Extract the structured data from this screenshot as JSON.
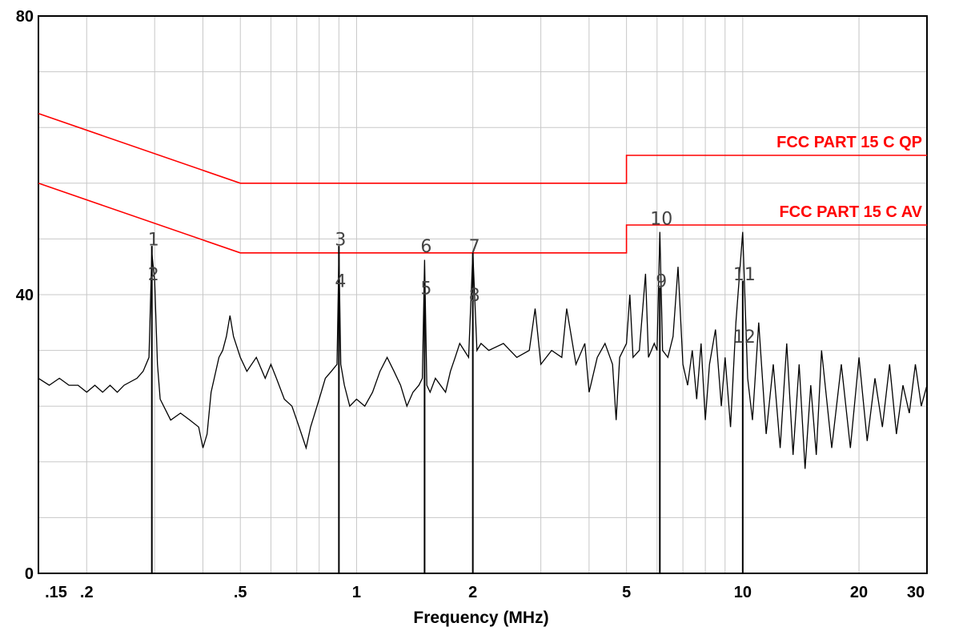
{
  "chart_data": {
    "type": "line",
    "xlabel": "Frequency (MHz)",
    "ylabel": "",
    "x_scale": "log",
    "xlim": [
      0.15,
      30
    ],
    "ylim": [
      0,
      80
    ],
    "grid": true,
    "x_ticks": [
      {
        "value": 0.15,
        "label": ".15"
      },
      {
        "value": 0.2,
        "label": ".2"
      },
      {
        "value": 0.5,
        "label": ".5"
      },
      {
        "value": 1,
        "label": "1"
      },
      {
        "value": 2,
        "label": "2"
      },
      {
        "value": 5,
        "label": "5"
      },
      {
        "value": 10,
        "label": "10"
      },
      {
        "value": 20,
        "label": "20"
      },
      {
        "value": 30,
        "label": "30"
      }
    ],
    "y_ticks": [
      {
        "value": 0,
        "label": "0"
      },
      {
        "value": 40,
        "label": "40"
      },
      {
        "value": 80,
        "label": "80"
      }
    ],
    "limit_lines": [
      {
        "name": "FCC PART 15 C QP",
        "color": "#ff0000",
        "points": [
          [
            0.15,
            66
          ],
          [
            0.5,
            56
          ],
          [
            5,
            56
          ],
          [
            5,
            60
          ],
          [
            30,
            60
          ]
        ]
      },
      {
        "name": "FCC PART 15 C AV",
        "color": "#ff0000",
        "points": [
          [
            0.15,
            56
          ],
          [
            0.5,
            46
          ],
          [
            5,
            46
          ],
          [
            5,
            50
          ],
          [
            30,
            50
          ]
        ]
      }
    ],
    "spectrum": [
      [
        0.15,
        28
      ],
      [
        0.16,
        27
      ],
      [
        0.17,
        28
      ],
      [
        0.18,
        27
      ],
      [
        0.19,
        27
      ],
      [
        0.2,
        26
      ],
      [
        0.21,
        27
      ],
      [
        0.22,
        26
      ],
      [
        0.23,
        27
      ],
      [
        0.24,
        26
      ],
      [
        0.25,
        27
      ],
      [
        0.27,
        28
      ],
      [
        0.28,
        29
      ],
      [
        0.29,
        31
      ],
      [
        0.295,
        46
      ],
      [
        0.3,
        42
      ],
      [
        0.305,
        30
      ],
      [
        0.31,
        25
      ],
      [
        0.33,
        22
      ],
      [
        0.35,
        23
      ],
      [
        0.37,
        22
      ],
      [
        0.39,
        21
      ],
      [
        0.4,
        18
      ],
      [
        0.41,
        20
      ],
      [
        0.42,
        26
      ],
      [
        0.44,
        31
      ],
      [
        0.45,
        32
      ],
      [
        0.46,
        34
      ],
      [
        0.47,
        37
      ],
      [
        0.48,
        34
      ],
      [
        0.5,
        31
      ],
      [
        0.52,
        29
      ],
      [
        0.55,
        31
      ],
      [
        0.58,
        28
      ],
      [
        0.6,
        30
      ],
      [
        0.62,
        28
      ],
      [
        0.65,
        25
      ],
      [
        0.68,
        24
      ],
      [
        0.7,
        22
      ],
      [
        0.72,
        20
      ],
      [
        0.74,
        18
      ],
      [
        0.76,
        21
      ],
      [
        0.8,
        25
      ],
      [
        0.83,
        28
      ],
      [
        0.86,
        29
      ],
      [
        0.89,
        30
      ],
      [
        0.9,
        46
      ],
      [
        0.91,
        30
      ],
      [
        0.93,
        27
      ],
      [
        0.96,
        24
      ],
      [
        1.0,
        25
      ],
      [
        1.05,
        24
      ],
      [
        1.1,
        26
      ],
      [
        1.15,
        29
      ],
      [
        1.2,
        31
      ],
      [
        1.25,
        29
      ],
      [
        1.3,
        27
      ],
      [
        1.35,
        24
      ],
      [
        1.4,
        26
      ],
      [
        1.45,
        27
      ],
      [
        1.48,
        28
      ],
      [
        1.5,
        45
      ],
      [
        1.52,
        27
      ],
      [
        1.55,
        26
      ],
      [
        1.6,
        28
      ],
      [
        1.7,
        26
      ],
      [
        1.75,
        29
      ],
      [
        1.8,
        31
      ],
      [
        1.85,
        33
      ],
      [
        1.9,
        32
      ],
      [
        1.95,
        31
      ],
      [
        2.0,
        46
      ],
      [
        2.05,
        32
      ],
      [
        2.1,
        33
      ],
      [
        2.2,
        32
      ],
      [
        2.4,
        33
      ],
      [
        2.6,
        31
      ],
      [
        2.8,
        32
      ],
      [
        2.9,
        38
      ],
      [
        3.0,
        30
      ],
      [
        3.2,
        32
      ],
      [
        3.4,
        31
      ],
      [
        3.5,
        38
      ],
      [
        3.7,
        30
      ],
      [
        3.9,
        33
      ],
      [
        4.0,
        26
      ],
      [
        4.2,
        31
      ],
      [
        4.4,
        33
      ],
      [
        4.6,
        30
      ],
      [
        4.7,
        22
      ],
      [
        4.8,
        31
      ],
      [
        5.0,
        33
      ],
      [
        5.1,
        40
      ],
      [
        5.2,
        31
      ],
      [
        5.4,
        32
      ],
      [
        5.6,
        43
      ],
      [
        5.7,
        31
      ],
      [
        5.9,
        33
      ],
      [
        6.0,
        32
      ],
      [
        6.1,
        49
      ],
      [
        6.2,
        32
      ],
      [
        6.4,
        31
      ],
      [
        6.6,
        34
      ],
      [
        6.8,
        44
      ],
      [
        7.0,
        30
      ],
      [
        7.2,
        27
      ],
      [
        7.4,
        32
      ],
      [
        7.6,
        25
      ],
      [
        7.8,
        33
      ],
      [
        8.0,
        22
      ],
      [
        8.2,
        30
      ],
      [
        8.5,
        35
      ],
      [
        8.8,
        24
      ],
      [
        9.0,
        31
      ],
      [
        9.3,
        21
      ],
      [
        9.6,
        36
      ],
      [
        10.0,
        49
      ],
      [
        10.3,
        28
      ],
      [
        10.6,
        22
      ],
      [
        11.0,
        36
      ],
      [
        11.5,
        20
      ],
      [
        12.0,
        30
      ],
      [
        12.5,
        18
      ],
      [
        13.0,
        33
      ],
      [
        13.5,
        17
      ],
      [
        14.0,
        30
      ],
      [
        14.5,
        15
      ],
      [
        15.0,
        27
      ],
      [
        15.5,
        17
      ],
      [
        16.0,
        32
      ],
      [
        17.0,
        18
      ],
      [
        18.0,
        30
      ],
      [
        19.0,
        18
      ],
      [
        20.0,
        31
      ],
      [
        21.0,
        19
      ],
      [
        22.0,
        28
      ],
      [
        23.0,
        21
      ],
      [
        24.0,
        30
      ],
      [
        25.0,
        20
      ],
      [
        26.0,
        27
      ],
      [
        27.0,
        23
      ],
      [
        28.0,
        30
      ],
      [
        29.0,
        24
      ],
      [
        30.0,
        27
      ]
    ],
    "markers": [
      {
        "label": "1",
        "x": 0.295,
        "y": 48
      },
      {
        "label": "2",
        "x": 0.295,
        "y": 43
      },
      {
        "label": "3",
        "x": 0.9,
        "y": 48
      },
      {
        "label": "4",
        "x": 0.9,
        "y": 42
      },
      {
        "label": "5",
        "x": 1.5,
        "y": 41
      },
      {
        "label": "6",
        "x": 1.5,
        "y": 47
      },
      {
        "label": "7",
        "x": 2.0,
        "y": 47
      },
      {
        "label": "8",
        "x": 2.0,
        "y": 40
      },
      {
        "label": "9",
        "x": 6.1,
        "y": 42
      },
      {
        "label": "10",
        "x": 6.1,
        "y": 51
      },
      {
        "label": "11",
        "x": 10.0,
        "y": 43
      },
      {
        "label": "12",
        "x": 10.0,
        "y": 34
      }
    ]
  }
}
